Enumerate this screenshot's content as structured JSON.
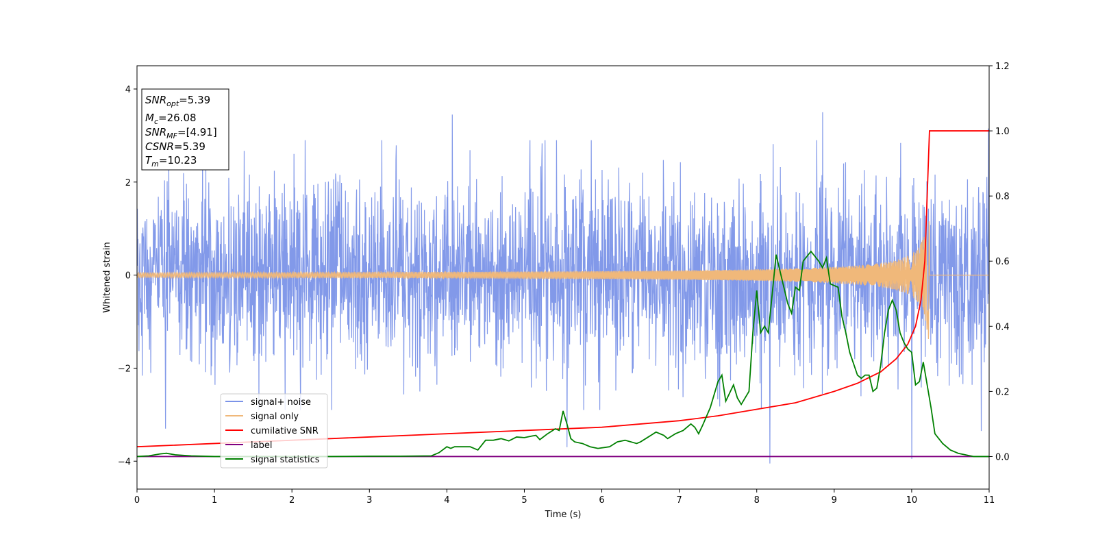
{
  "chart_data": {
    "type": "line",
    "title": "",
    "xlabel": "Time (s)",
    "ylabel": "Whitened strain",
    "xlim": [
      0,
      11
    ],
    "ylim_left": [
      -4.6,
      4.5
    ],
    "ylim_right": [
      -0.1,
      1.2
    ],
    "x_ticks": [
      0,
      1,
      2,
      3,
      4,
      5,
      6,
      7,
      8,
      9,
      10,
      11
    ],
    "y_ticks_left": [
      -4,
      -2,
      0,
      2,
      4
    ],
    "y_ticks_right": [
      "0.0",
      "0.2",
      "0.4",
      "0.6",
      "0.8",
      "1.0",
      "1.2"
    ],
    "grid": false,
    "legend_placement": "lower-left",
    "info_box": {
      "snr_opt": {
        "sym": "SNR",
        "sub": "opt",
        "value": "=5.39"
      },
      "mc": {
        "sym": "M",
        "sub": "c",
        "value": "=26.08"
      },
      "snr_mf": {
        "sym": "SNR",
        "sub": "MF",
        "value": "=[4.91]"
      },
      "csnr": {
        "sym": "CSNR",
        "value": "=5.39"
      },
      "tm": {
        "sym": "T",
        "sub": "m",
        "value": "=10.23"
      }
    },
    "series": [
      {
        "name": "signal+ noise",
        "color": "#7b93e8",
        "axis": "left",
        "noise_sigma": 1.0,
        "notable_points": [
          [
            0.37,
            -3.3
          ],
          [
            4.07,
            3.45
          ],
          [
            5.55,
            -3.7
          ],
          [
            8.17,
            -4.05
          ],
          [
            8.85,
            3.5
          ],
          [
            10.0,
            -3.95
          ],
          [
            10.9,
            -3.35
          ],
          [
            10.99,
            3.15
          ]
        ]
      },
      {
        "name": "signal only",
        "color": "#f0b87a",
        "axis": "left",
        "chirp_peak_time": 10.23,
        "peak_amplitude": 1.4
      },
      {
        "name": "cumilative SNR",
        "color": "#ff0000",
        "axis": "right",
        "x": [
          0,
          1,
          2,
          3,
          4,
          5,
          6,
          7,
          7.5,
          8,
          8.5,
          9,
          9.3,
          9.6,
          9.8,
          9.95,
          10.05,
          10.12,
          10.17,
          10.2,
          10.23,
          11
        ],
        "y": [
          0.03,
          0.04,
          0.05,
          0.06,
          0.07,
          0.08,
          0.09,
          0.11,
          0.125,
          0.145,
          0.165,
          0.2,
          0.225,
          0.26,
          0.3,
          0.345,
          0.4,
          0.48,
          0.6,
          0.8,
          1.0,
          1.0
        ]
      },
      {
        "name": "label",
        "color": "#800080",
        "axis": "right",
        "x": [
          0,
          11
        ],
        "y": [
          0.0,
          0.0
        ]
      },
      {
        "name": "signal statistics",
        "color": "#008000",
        "axis": "right",
        "x": [
          0,
          0.15,
          0.3,
          0.38,
          0.5,
          0.7,
          1.0,
          1.5,
          2.0,
          2.5,
          3.0,
          3.4,
          3.8,
          3.9,
          4.0,
          4.05,
          4.1,
          4.2,
          4.3,
          4.4,
          4.5,
          4.6,
          4.7,
          4.8,
          4.9,
          5.0,
          5.1,
          5.15,
          5.2,
          5.3,
          5.4,
          5.45,
          5.5,
          5.55,
          5.6,
          5.65,
          5.75,
          5.85,
          5.95,
          6.1,
          6.2,
          6.3,
          6.45,
          6.5,
          6.6,
          6.7,
          6.8,
          6.85,
          6.95,
          7.05,
          7.15,
          7.2,
          7.25,
          7.3,
          7.4,
          7.5,
          7.55,
          7.6,
          7.7,
          7.75,
          7.8,
          7.9,
          7.95,
          8.0,
          8.05,
          8.1,
          8.15,
          8.2,
          8.25,
          8.3,
          8.4,
          8.45,
          8.5,
          8.55,
          8.6,
          8.7,
          8.8,
          8.85,
          8.9,
          8.95,
          9.05,
          9.1,
          9.15,
          9.2,
          9.3,
          9.35,
          9.4,
          9.45,
          9.5,
          9.55,
          9.6,
          9.65,
          9.7,
          9.75,
          9.8,
          9.85,
          9.9,
          9.95,
          10.0,
          10.05,
          10.1,
          10.15,
          10.2,
          10.25,
          10.3,
          10.4,
          10.5,
          10.6,
          10.8,
          11.0
        ],
        "y": [
          0.0,
          0.002,
          0.008,
          0.01,
          0.005,
          0.002,
          0.0,
          0.0,
          0.0,
          0.0,
          0.001,
          0.001,
          0.002,
          0.012,
          0.03,
          0.025,
          0.03,
          0.03,
          0.03,
          0.02,
          0.05,
          0.05,
          0.055,
          0.048,
          0.06,
          0.058,
          0.063,
          0.065,
          0.052,
          0.07,
          0.085,
          0.08,
          0.14,
          0.1,
          0.055,
          0.045,
          0.04,
          0.03,
          0.025,
          0.03,
          0.045,
          0.05,
          0.04,
          0.045,
          0.06,
          0.075,
          0.065,
          0.055,
          0.07,
          0.08,
          0.1,
          0.09,
          0.07,
          0.095,
          0.15,
          0.23,
          0.25,
          0.17,
          0.22,
          0.18,
          0.16,
          0.2,
          0.38,
          0.51,
          0.38,
          0.4,
          0.38,
          0.5,
          0.62,
          0.57,
          0.47,
          0.44,
          0.52,
          0.51,
          0.6,
          0.63,
          0.6,
          0.58,
          0.61,
          0.53,
          0.52,
          0.43,
          0.38,
          0.32,
          0.25,
          0.24,
          0.25,
          0.25,
          0.2,
          0.21,
          0.28,
          0.38,
          0.45,
          0.48,
          0.45,
          0.38,
          0.35,
          0.33,
          0.32,
          0.22,
          0.23,
          0.29,
          0.22,
          0.15,
          0.07,
          0.04,
          0.02,
          0.01,
          0.0,
          0.0
        ]
      }
    ]
  }
}
